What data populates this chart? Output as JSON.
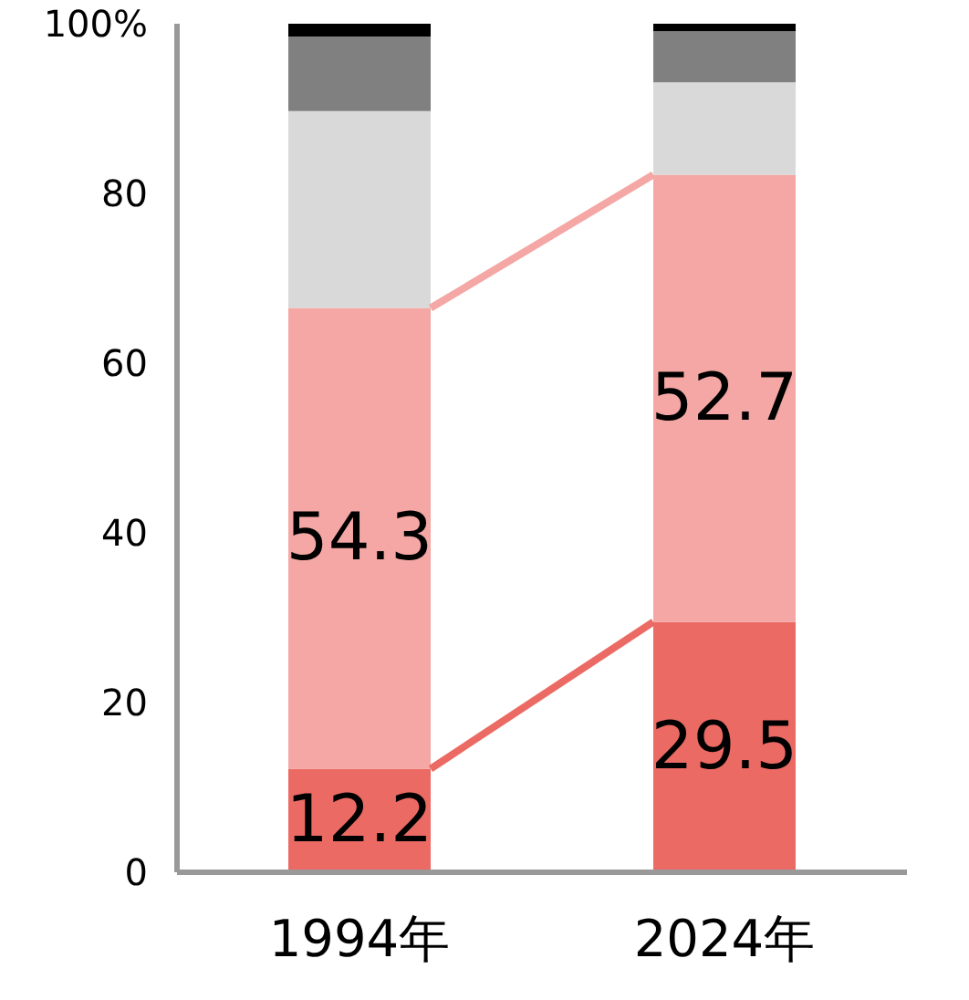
{
  "chart_data": {
    "type": "bar",
    "stacked": true,
    "categories": [
      "1994年",
      "2024年"
    ],
    "series": [
      {
        "color": "#ec6a64",
        "values": [
          12.2,
          29.5
        ],
        "value_labels": [
          "12.2",
          "29.5"
        ]
      },
      {
        "color": "#f4a7a4",
        "values": [
          54.3,
          52.7
        ],
        "value_labels": [
          "54.3",
          "52.7"
        ]
      },
      {
        "color": "#d9d9d9",
        "values": [
          23.2,
          10.9
        ]
      },
      {
        "color": "#808080",
        "values": [
          8.8,
          6.0
        ]
      },
      {
        "color": "#000000",
        "values": [
          1.5,
          0.9
        ]
      }
    ],
    "ylim": [
      0,
      100
    ],
    "yticks": [
      0,
      20,
      40,
      60,
      80,
      {
        "value": 100,
        "label": "100%"
      }
    ],
    "grid": false,
    "legend": false
  }
}
